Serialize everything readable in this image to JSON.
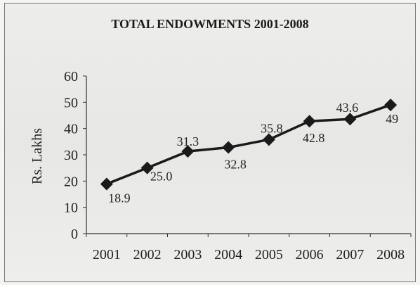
{
  "chart_data": {
    "type": "line",
    "title": "TOTAL ENDOWMENTS 2001-2008",
    "xlabel": "",
    "ylabel": "Rs. Lakhs",
    "categories": [
      "2001",
      "2002",
      "2003",
      "2004",
      "2005",
      "2006",
      "2007",
      "2008"
    ],
    "series": [
      {
        "values": [
          18.9,
          25.0,
          31.3,
          32.8,
          35.8,
          42.8,
          43.6,
          49
        ],
        "labels": [
          "18.9",
          "25.0",
          "31.3",
          "32.8",
          "35.8",
          "42.8",
          "43.6",
          "49"
        ]
      }
    ],
    "ylim": [
      0,
      60
    ],
    "yticks": [
      "0",
      "10",
      "20",
      "30",
      "40",
      "50",
      "60"
    ],
    "grid": false,
    "legend": "none",
    "colors": {
      "line": "#1a1a1a",
      "marker": "#1a1a1a"
    },
    "marker": "diamond"
  }
}
